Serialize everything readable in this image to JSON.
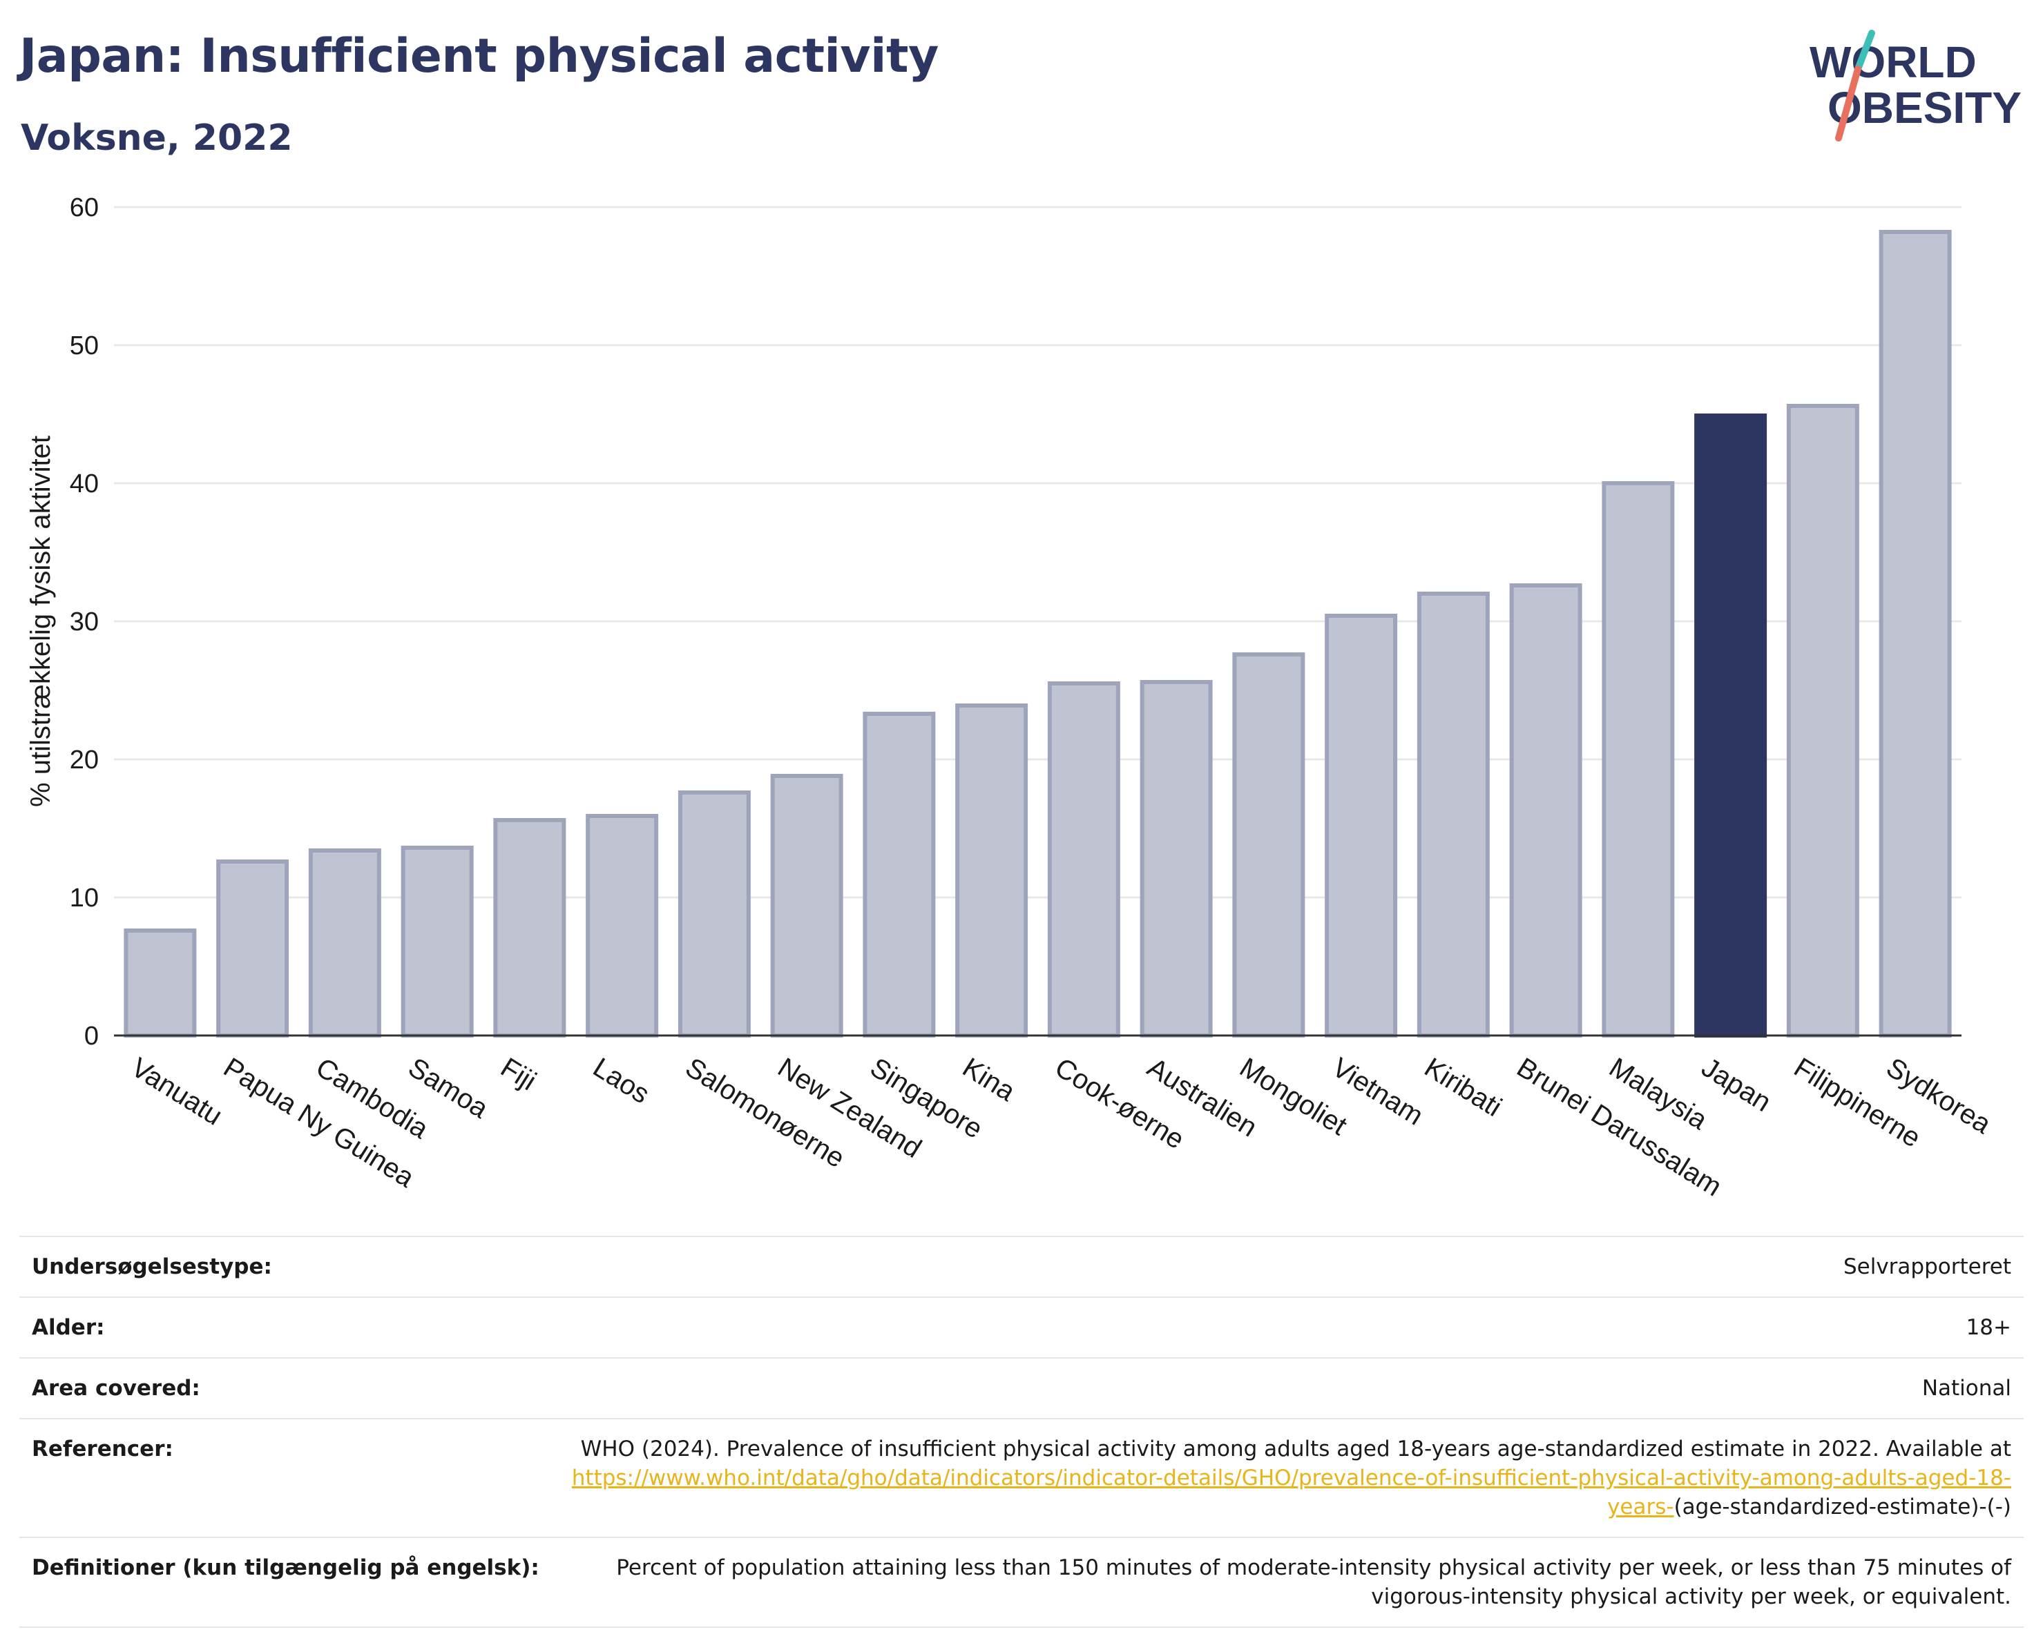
{
  "header": {
    "title": "Japan: Insufficient physical activity",
    "subtitle": "Voksne, 2022"
  },
  "logo": {
    "line1": "WORLD",
    "line2": "OBESITY",
    "colors": {
      "text": "#2d3561",
      "slash_teal": "#3dbfb8",
      "slash_coral": "#e8705f"
    }
  },
  "chart_data": {
    "type": "bar",
    "title": "Japan: Insufficient physical activity",
    "subtitle": "Voksne, 2022",
    "xlabel": "",
    "ylabel": "% utilstrækkelig fysisk aktivitet",
    "ylim": [
      0,
      60
    ],
    "yticks": [
      0,
      10,
      20,
      30,
      40,
      50,
      60
    ],
    "grid": true,
    "highlight": "Japan",
    "colors": {
      "bar": "#c0c3d1",
      "bar_border": "#9fa4bd",
      "highlight": "#2d3561",
      "grid": "#e8e8e8"
    },
    "categories": [
      "Vanuatu",
      "Papua Ny Guinea",
      "Cambodia",
      "Samoa",
      "Fiji",
      "Laos",
      "Salomonøerne",
      "New Zealand",
      "Singapore",
      "Kina",
      "Cook-øerne",
      "Australien",
      "Mongoliet",
      "Vietnam",
      "Kiribati",
      "Brunei Darussalam",
      "Malaysia",
      "Japan",
      "Filippinerne",
      "Sydkorea"
    ],
    "values": [
      7.6,
      12.6,
      13.4,
      13.6,
      15.6,
      15.9,
      17.6,
      18.8,
      23.3,
      23.9,
      25.5,
      25.6,
      27.6,
      30.4,
      32.0,
      32.6,
      40.0,
      44.9,
      45.6,
      58.2
    ]
  },
  "meta": [
    {
      "label": "Undersøgelsestype:",
      "value": "Selvrapporteret"
    },
    {
      "label": "Alder:",
      "value": "18+"
    },
    {
      "label": "Area covered:",
      "value": "National"
    },
    {
      "label": "Referencer:",
      "value_pre": "WHO (2024). Prevalence of insufficient physical activity among adults aged 18-years age-standardized estimate in 2022. Available at",
      "value_link": "https://www.who.int/data/gho/data/indicators/indicator-details/GHO/prevalence-of-insufficient-physical-activity-among-adults-aged-18-years-",
      "value_post": "(age-standardized-estimate)-(-)"
    },
    {
      "label": "Definitioner (kun tilgængelig på engelsk):",
      "value": "Percent of population attaining less than 150 minutes of moderate-intensity physical activity per week, or less than 75 minutes of vigorous-intensity physical activity per week, or equivalent."
    }
  ]
}
